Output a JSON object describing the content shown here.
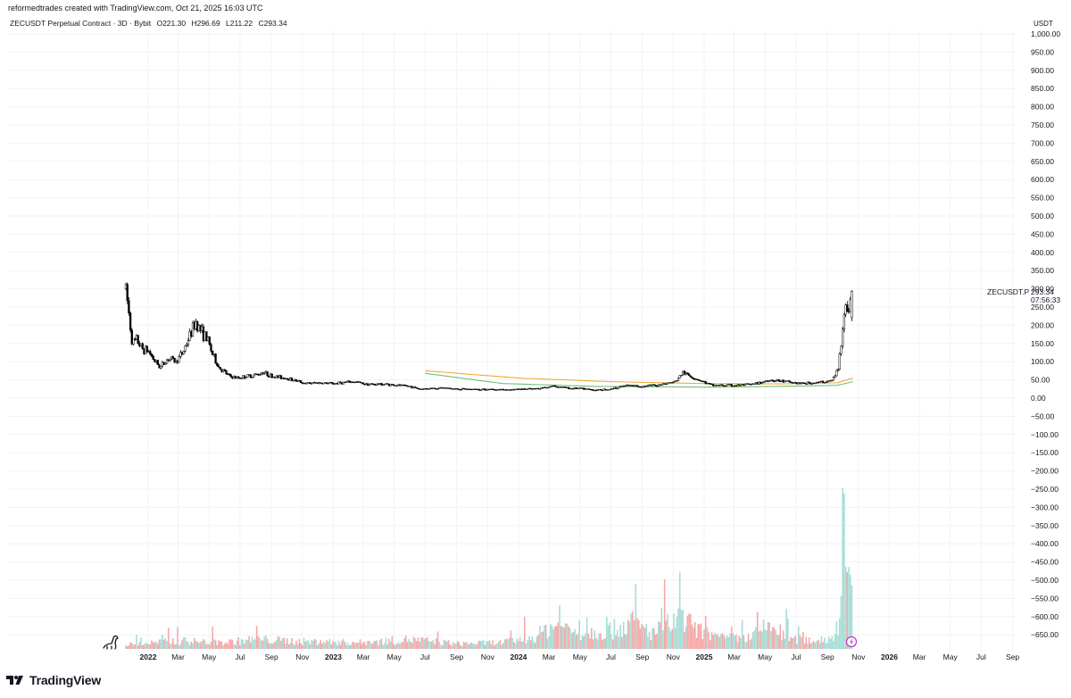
{
  "header": {
    "credit": "reformedtrades created with TradingView.com, Oct 21, 2025 16:03 UTC",
    "symbol": "ZECUSDT Perpetual Contract · 3D · Bybit",
    "open": "O221.30",
    "high": "H296.69",
    "low": "L211.22",
    "close": "C293.34",
    "currency": "USDT"
  },
  "last_price": {
    "ticker": "ZECUSDT.P",
    "price": "293.34",
    "countdown": "07:56:33"
  },
  "brand": {
    "name": "TradingView"
  },
  "icons": {
    "brand": "tradingview-logo-icon",
    "dino": "dino-icon",
    "lightning": "lightning-icon"
  },
  "colors": {
    "candle": "#000000",
    "volume_up": "#a8dcd6",
    "volume_down": "#f4a9a8",
    "ma_fast": "#f2a93b",
    "ma_slow": "#6cbf73",
    "grid": "#f1f3f6",
    "lightning": "#c030c0"
  },
  "chart_data": {
    "type": "candlestick",
    "title": "ZECUSDT Perpetual Contract · 3D · Bybit",
    "ylim": [
      -680,
      1000
    ],
    "y_ticks": [
      "1,000.00",
      "950.00",
      "900.00",
      "850.00",
      "800.00",
      "750.00",
      "700.00",
      "650.00",
      "600.00",
      "550.00",
      "500.00",
      "450.00",
      "400.00",
      "350.00",
      "300.00",
      "250.00",
      "200.00",
      "150.00",
      "100.00",
      "50.00",
      "0.00",
      "−50.00",
      "−100.00",
      "−150.00",
      "−200.00",
      "−250.00",
      "−300.00",
      "−350.00",
      "−400.00",
      "−450.00",
      "−500.00",
      "−550.00",
      "−600.00",
      "−650.00"
    ],
    "y_tick_values": [
      1000,
      950,
      900,
      850,
      800,
      750,
      700,
      650,
      600,
      550,
      500,
      450,
      400,
      350,
      300,
      250,
      200,
      150,
      100,
      50,
      0,
      -50,
      -100,
      -150,
      -200,
      -250,
      -300,
      -350,
      -400,
      -450,
      -500,
      -550,
      -600,
      -650
    ],
    "x_ticks": [
      {
        "label": "2022",
        "date": "2022-01-01",
        "year": true
      },
      {
        "label": "Mar",
        "date": "2022-03-01"
      },
      {
        "label": "May",
        "date": "2022-05-01"
      },
      {
        "label": "Jul",
        "date": "2022-07-01"
      },
      {
        "label": "Sep",
        "date": "2022-09-01"
      },
      {
        "label": "Nov",
        "date": "2022-11-01"
      },
      {
        "label": "2023",
        "date": "2023-01-01",
        "year": true
      },
      {
        "label": "Mar",
        "date": "2023-03-01"
      },
      {
        "label": "May",
        "date": "2023-05-01"
      },
      {
        "label": "Jul",
        "date": "2023-07-01"
      },
      {
        "label": "Sep",
        "date": "2023-09-01"
      },
      {
        "label": "Nov",
        "date": "2023-11-01"
      },
      {
        "label": "2024",
        "date": "2024-01-01",
        "year": true
      },
      {
        "label": "Mar",
        "date": "2024-03-01"
      },
      {
        "label": "May",
        "date": "2024-05-01"
      },
      {
        "label": "Jul",
        "date": "2024-07-01"
      },
      {
        "label": "Sep",
        "date": "2024-09-01"
      },
      {
        "label": "Nov",
        "date": "2024-11-01"
      },
      {
        "label": "2025",
        "date": "2025-01-01",
        "year": true
      },
      {
        "label": "Mar",
        "date": "2025-03-01"
      },
      {
        "label": "May",
        "date": "2025-05-01"
      },
      {
        "label": "Jul",
        "date": "2025-07-01"
      },
      {
        "label": "Sep",
        "date": "2025-09-01"
      },
      {
        "label": "Nov",
        "date": "2025-11-01"
      },
      {
        "label": "2026",
        "date": "2026-01-01",
        "year": true
      },
      {
        "label": "Mar",
        "date": "2026-03-01"
      },
      {
        "label": "May",
        "date": "2026-05-01"
      },
      {
        "label": "Jul",
        "date": "2026-07-01"
      },
      {
        "label": "Sep",
        "date": "2026-09-01"
      }
    ],
    "price_path": [
      [
        "2021-11-18",
        300
      ],
      [
        "2021-11-22",
        255
      ],
      [
        "2021-12-01",
        150
      ],
      [
        "2021-12-10",
        160
      ],
      [
        "2021-12-20",
        135
      ],
      [
        "2022-01-01",
        130
      ],
      [
        "2022-01-15",
        100
      ],
      [
        "2022-01-25",
        85
      ],
      [
        "2022-02-10",
        110
      ],
      [
        "2022-02-25",
        100
      ],
      [
        "2022-03-10",
        125
      ],
      [
        "2022-03-25",
        175
      ],
      [
        "2022-04-05",
        210
      ],
      [
        "2022-04-15",
        185
      ],
      [
        "2022-04-28",
        160
      ],
      [
        "2022-05-08",
        120
      ],
      [
        "2022-05-20",
        85
      ],
      [
        "2022-06-10",
        60
      ],
      [
        "2022-06-25",
        55
      ],
      [
        "2022-07-15",
        60
      ],
      [
        "2022-08-05",
        65
      ],
      [
        "2022-08-15",
        72
      ],
      [
        "2022-09-01",
        60
      ],
      [
        "2022-10-01",
        55
      ],
      [
        "2022-11-08",
        40
      ],
      [
        "2022-12-01",
        42
      ],
      [
        "2023-01-01",
        40
      ],
      [
        "2023-02-10",
        45
      ],
      [
        "2023-03-10",
        38
      ],
      [
        "2023-04-15",
        38
      ],
      [
        "2023-06-01",
        32
      ],
      [
        "2023-06-20",
        25
      ],
      [
        "2023-08-01",
        28
      ],
      [
        "2023-09-01",
        25
      ],
      [
        "2023-10-01",
        24
      ],
      [
        "2023-11-01",
        24
      ],
      [
        "2023-12-01",
        23
      ],
      [
        "2024-01-01",
        24
      ],
      [
        "2024-02-01",
        25
      ],
      [
        "2024-03-10",
        33
      ],
      [
        "2024-04-10",
        27
      ],
      [
        "2024-05-01",
        26
      ],
      [
        "2024-06-01",
        22
      ],
      [
        "2024-07-01",
        25
      ],
      [
        "2024-08-01",
        35
      ],
      [
        "2024-09-01",
        32
      ],
      [
        "2024-10-01",
        36
      ],
      [
        "2024-11-05",
        45
      ],
      [
        "2024-11-20",
        70
      ],
      [
        "2024-12-05",
        60
      ],
      [
        "2024-12-25",
        48
      ],
      [
        "2025-01-15",
        35
      ],
      [
        "2025-02-10",
        35
      ],
      [
        "2025-03-10",
        35
      ],
      [
        "2025-04-10",
        38
      ],
      [
        "2025-05-10",
        50
      ],
      [
        "2025-06-10",
        45
      ],
      [
        "2025-07-10",
        40
      ],
      [
        "2025-08-10",
        42
      ],
      [
        "2025-09-10",
        48
      ],
      [
        "2025-09-22",
        80
      ],
      [
        "2025-09-30",
        180
      ],
      [
        "2025-10-05",
        260
      ],
      [
        "2025-10-10",
        230
      ],
      [
        "2025-10-15",
        270
      ],
      [
        "2025-10-21",
        293
      ]
    ],
    "ma_fast": [
      [
        "2023-07-01",
        75
      ],
      [
        "2024-01-01",
        55
      ],
      [
        "2024-07-01",
        45
      ],
      [
        "2025-01-01",
        40
      ],
      [
        "2025-06-01",
        39
      ],
      [
        "2025-09-20",
        42
      ],
      [
        "2025-10-21",
        55
      ]
    ],
    "ma_slow": [
      [
        "2023-07-01",
        68
      ],
      [
        "2023-12-01",
        40
      ],
      [
        "2024-06-01",
        32
      ],
      [
        "2025-01-01",
        30
      ],
      [
        "2025-06-01",
        32
      ],
      [
        "2025-09-20",
        35
      ],
      [
        "2025-10-21",
        45
      ]
    ],
    "volume_path": [
      [
        "2021-11-18",
        0.08
      ],
      [
        "2022-03-01",
        0.15
      ],
      [
        "2022-06-01",
        0.12
      ],
      [
        "2022-08-01",
        0.18
      ],
      [
        "2022-11-01",
        0.14
      ],
      [
        "2023-03-01",
        0.12
      ],
      [
        "2023-06-01",
        0.18
      ],
      [
        "2023-09-01",
        0.1
      ],
      [
        "2023-12-01",
        0.12
      ],
      [
        "2024-02-01",
        0.22
      ],
      [
        "2024-03-10",
        0.45
      ],
      [
        "2024-05-01",
        0.3
      ],
      [
        "2024-07-01",
        0.35
      ],
      [
        "2024-08-10",
        0.5
      ],
      [
        "2024-09-20",
        0.3
      ],
      [
        "2024-11-15",
        0.55
      ],
      [
        "2024-12-20",
        0.35
      ],
      [
        "2025-02-01",
        0.2
      ],
      [
        "2025-04-01",
        0.2
      ],
      [
        "2025-05-10",
        0.45
      ],
      [
        "2025-06-20",
        0.18
      ],
      [
        "2025-08-01",
        0.16
      ],
      [
        "2025-09-10",
        0.2
      ],
      [
        "2025-09-25",
        0.6
      ],
      [
        "2025-10-02",
        2.5
      ],
      [
        "2025-10-08",
        1.6
      ],
      [
        "2025-10-14",
        1.3
      ],
      [
        "2025-10-21",
        0.6
      ]
    ]
  }
}
